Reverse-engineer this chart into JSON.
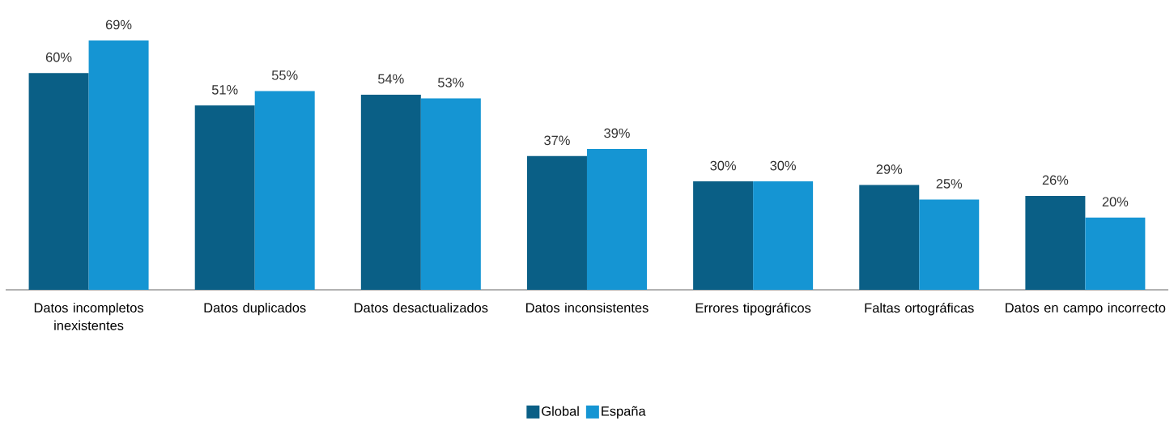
{
  "chart_data": {
    "type": "bar",
    "categories": [
      "Datos incompletos inexistentes",
      "Datos duplicados",
      "Datos desactualizados",
      "Datos inconsistentes",
      "Errores tipográficos",
      "Faltas ortográficas",
      "Datos en campo incorrecto"
    ],
    "series": [
      {
        "name": "Global",
        "color": "#0a5f86",
        "values": [
          60,
          51,
          54,
          37,
          30,
          29,
          26
        ],
        "value_labels": [
          "60%",
          "51%",
          "54%",
          "37%",
          "30%",
          "29%",
          "26%"
        ]
      },
      {
        "name": "España",
        "color": "#1595d3",
        "values": [
          69,
          55,
          53,
          39,
          30,
          25,
          20
        ],
        "value_labels": [
          "69%",
          "55%",
          "53%",
          "39%",
          "30%",
          "25%",
          "20%"
        ]
      }
    ],
    "ylim": [
      0,
      69
    ],
    "legend": "bottom"
  }
}
